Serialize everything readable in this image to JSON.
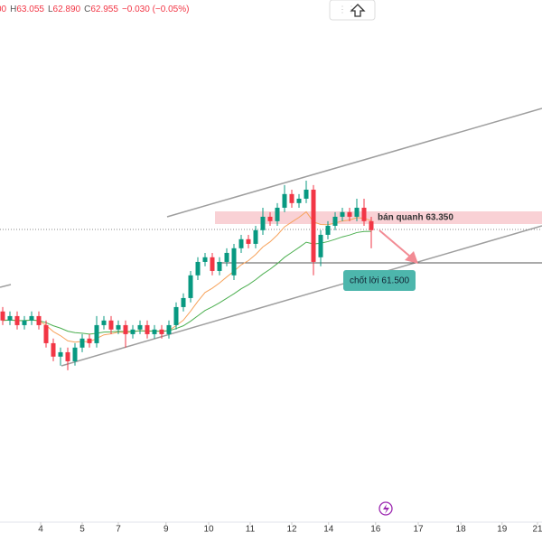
{
  "header": {
    "fragment": "00",
    "items": [
      {
        "key": "H",
        "value": "63.055"
      },
      {
        "key": "L",
        "value": "62.890"
      },
      {
        "key": "C",
        "value": "62.955"
      }
    ],
    "change": "−0.030 (−0.05%)"
  },
  "annotations": {
    "sell": "bán quanh 63.350",
    "take_profit": "chốt lời 61.500"
  },
  "chart_data": {
    "type": "candlestick",
    "up_color": "#089981",
    "down_color": "#f23645",
    "xlim": [
      -0.375,
      74.625
    ],
    "ylim": [
      50.88,
      72.27
    ],
    "xticks": [
      {
        "value": 5.25,
        "label": "4"
      },
      {
        "value": 11,
        "label": "5"
      },
      {
        "value": 16,
        "label": "7"
      },
      {
        "value": 22.6,
        "label": "9"
      },
      {
        "value": 28.5,
        "label": "10"
      },
      {
        "value": 34.25,
        "label": "11"
      },
      {
        "value": 40,
        "label": "12"
      },
      {
        "value": 45.1,
        "label": "14"
      },
      {
        "value": 51.6,
        "label": "16"
      },
      {
        "value": 57.5,
        "label": "17"
      },
      {
        "value": 63.4,
        "label": "18"
      },
      {
        "value": 69.1,
        "label": "19"
      },
      {
        "value": 74,
        "label": "21"
      }
    ],
    "open": [
      59.51,
      59.14,
      59.32,
      58.95,
      59.14,
      59.32,
      58.95,
      58.21,
      57.66,
      57.84,
      57.47,
      58.03,
      58.4,
      58.21,
      58.95,
      59.14,
      58.77,
      58.95,
      58.58,
      58.77,
      58.95,
      58.58,
      58.77,
      58.58,
      58.95,
      59.69,
      60.06,
      60.99,
      61.54,
      61.73,
      61.17,
      61.54,
      60.99,
      62.1,
      62.47,
      62.28,
      62.84,
      63.39,
      63.21,
      63.76,
      64.32,
      63.95,
      64.13,
      64.5,
      61.73,
      62.65,
      63.02,
      63.39,
      63.58,
      63.39,
      63.76,
      63.21
    ],
    "high": [
      59.69,
      59.51,
      59.51,
      59.32,
      59.51,
      59.51,
      59.14,
      58.4,
      58.03,
      58.03,
      58.21,
      58.58,
      58.58,
      59.32,
      59.32,
      59.32,
      59.14,
      59.14,
      58.95,
      59.14,
      59.14,
      58.95,
      58.95,
      59.14,
      59.88,
      60.25,
      61.17,
      61.73,
      61.91,
      61.91,
      61.73,
      62.1,
      62.28,
      62.65,
      62.65,
      63.02,
      63.76,
      63.58,
      63.95,
      64.69,
      64.5,
      64.32,
      64.87,
      64.69,
      62.84,
      63.21,
      63.58,
      63.76,
      63.76,
      64.13,
      64.13,
      63.39
    ],
    "low": [
      58.95,
      58.95,
      58.77,
      58.77,
      58.95,
      58.77,
      58.03,
      57.47,
      57.29,
      57.1,
      57.29,
      57.84,
      58.03,
      58.03,
      58.77,
      58.58,
      58.58,
      58.03,
      58.4,
      58.58,
      58.4,
      58.4,
      58.4,
      58.4,
      58.77,
      59.51,
      59.88,
      60.8,
      61.36,
      60.99,
      60.99,
      61.36,
      60.8,
      61.91,
      62.1,
      62.1,
      62.65,
      63.02,
      63.02,
      63.58,
      63.76,
      63.76,
      63.95,
      60.99,
      61.36,
      62.47,
      62.84,
      63.21,
      63.21,
      63.21,
      63.02,
      62.1
    ],
    "close": [
      59.14,
      59.32,
      58.95,
      59.14,
      59.32,
      58.95,
      58.21,
      57.66,
      57.84,
      57.47,
      58.03,
      58.4,
      58.21,
      58.95,
      59.14,
      58.77,
      58.95,
      58.58,
      58.77,
      58.95,
      58.58,
      58.77,
      58.58,
      58.95,
      59.69,
      60.06,
      60.99,
      61.54,
      61.73,
      61.17,
      61.54,
      61.91,
      62.1,
      62.47,
      62.28,
      62.84,
      63.39,
      63.21,
      63.76,
      64.32,
      63.95,
      64.13,
      64.5,
      61.54,
      62.65,
      63.02,
      63.39,
      63.58,
      63.39,
      63.76,
      63.21,
      62.84
    ]
  }
}
